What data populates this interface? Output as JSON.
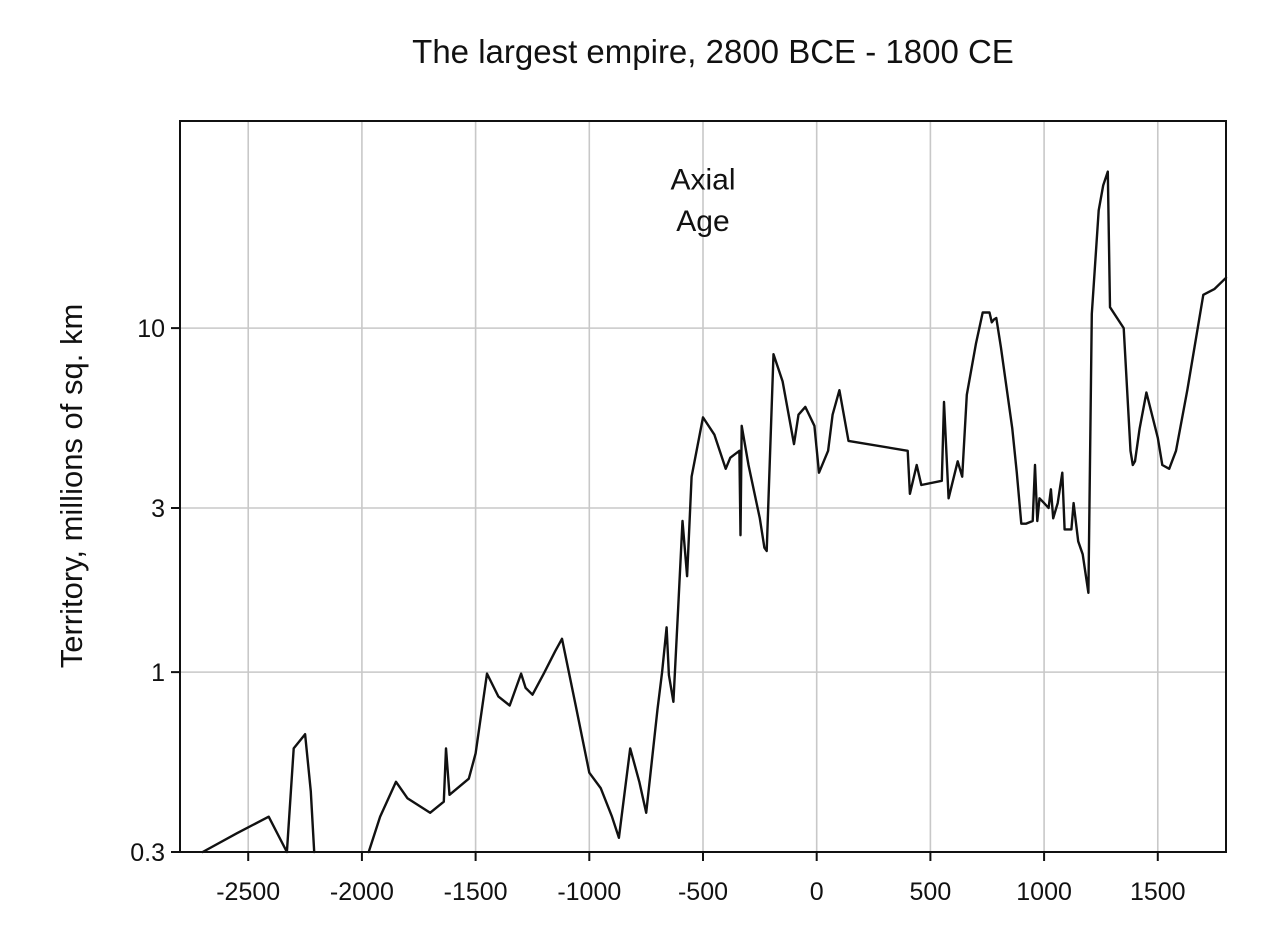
{
  "chart_data": {
    "type": "line",
    "title": "The largest empire, 2800 BCE - 1800 CE",
    "xlabel": "",
    "ylabel": "Territory, millions of sq. km",
    "xlim": [
      -2800,
      1800
    ],
    "ylim": [
      0.3,
      40
    ],
    "yscale": "log",
    "grid": true,
    "line_color": "#111111",
    "grid_color": "#c8c8c8",
    "x_ticks": [
      {
        "value": -2500,
        "label": "-2500"
      },
      {
        "value": -2000,
        "label": "-2000"
      },
      {
        "value": -1500,
        "label": "-1500"
      },
      {
        "value": -1000,
        "label": "-1000"
      },
      {
        "value": -500,
        "label": "-500"
      },
      {
        "value": 0,
        "label": "0"
      },
      {
        "value": 500,
        "label": "500"
      },
      {
        "value": 1000,
        "label": "1000"
      },
      {
        "value": 1500,
        "label": "1500"
      }
    ],
    "y_ticks": [
      {
        "value": 0.3,
        "label": "0.3"
      },
      {
        "value": 1,
        "label": "1"
      },
      {
        "value": 3,
        "label": "3"
      },
      {
        "value": 10,
        "label": "10"
      }
    ],
    "annotations": [
      {
        "text": "Axial",
        "x": -500,
        "y": 27
      },
      {
        "text": "Age",
        "x": -500,
        "y": 20.5
      }
    ],
    "series": [
      {
        "points": [
          [
            -2700,
            0.3
          ],
          [
            -2550,
            0.34
          ],
          [
            -2410,
            0.38
          ],
          [
            -2330,
            0.3
          ],
          [
            -2300,
            0.6
          ],
          [
            -2250,
            0.66
          ],
          [
            -2225,
            0.45
          ],
          [
            -2210,
            0.3
          ],
          null,
          [
            -1970,
            0.3
          ],
          [
            -1920,
            0.38
          ],
          [
            -1850,
            0.48
          ],
          [
            -1800,
            0.43
          ],
          [
            -1700,
            0.39
          ],
          [
            -1640,
            0.42
          ],
          [
            -1630,
            0.6
          ],
          [
            -1615,
            0.44
          ],
          [
            -1530,
            0.49
          ],
          [
            -1500,
            0.58
          ],
          [
            -1450,
            0.99
          ],
          [
            -1400,
            0.85
          ],
          [
            -1350,
            0.8
          ],
          [
            -1300,
            0.99
          ],
          [
            -1280,
            0.9
          ],
          [
            -1250,
            0.86
          ],
          [
            -1200,
            0.99
          ],
          [
            -1150,
            1.15
          ],
          [
            -1120,
            1.25
          ],
          [
            -1060,
            0.8
          ],
          [
            -1000,
            0.51
          ],
          [
            -950,
            0.46
          ],
          [
            -900,
            0.38
          ],
          [
            -870,
            0.33
          ],
          [
            -820,
            0.6
          ],
          [
            -780,
            0.48
          ],
          [
            -750,
            0.39
          ],
          [
            -700,
            0.78
          ],
          [
            -680,
            1.0
          ],
          [
            -660,
            1.35
          ],
          [
            -650,
            0.98
          ],
          [
            -630,
            0.82
          ],
          [
            -610,
            1.5
          ],
          [
            -590,
            2.75
          ],
          [
            -570,
            1.9
          ],
          [
            -550,
            3.7
          ],
          [
            -500,
            5.5
          ],
          [
            -450,
            4.9
          ],
          [
            -400,
            3.9
          ],
          [
            -380,
            4.2
          ],
          [
            -340,
            4.4
          ],
          [
            -335,
            2.5
          ],
          [
            -330,
            5.2
          ],
          [
            -300,
            4.0
          ],
          [
            -250,
            2.8
          ],
          [
            -230,
            2.3
          ],
          [
            -220,
            2.25
          ],
          [
            -190,
            8.4
          ],
          [
            -150,
            7.0
          ],
          [
            -100,
            4.6
          ],
          [
            -80,
            5.6
          ],
          [
            -50,
            5.9
          ],
          [
            -10,
            5.2
          ],
          [
            10,
            3.8
          ],
          [
            50,
            4.4
          ],
          [
            70,
            5.6
          ],
          [
            100,
            6.6
          ],
          [
            140,
            4.7
          ],
          [
            400,
            4.4
          ],
          [
            410,
            3.3
          ],
          [
            440,
            4.0
          ],
          [
            460,
            3.5
          ],
          [
            550,
            3.6
          ],
          [
            560,
            6.1
          ],
          [
            580,
            3.2
          ],
          [
            620,
            4.1
          ],
          [
            640,
            3.7
          ],
          [
            660,
            6.4
          ],
          [
            700,
            9.0
          ],
          [
            730,
            11.1
          ],
          [
            760,
            11.1
          ],
          [
            770,
            10.4
          ],
          [
            780,
            10.6
          ],
          [
            790,
            10.7
          ],
          [
            810,
            8.8
          ],
          [
            860,
            5.1
          ],
          [
            880,
            3.8
          ],
          [
            900,
            2.7
          ],
          [
            920,
            2.7
          ],
          [
            950,
            2.75
          ],
          [
            960,
            4.0
          ],
          [
            970,
            2.75
          ],
          [
            980,
            3.2
          ],
          [
            1000,
            3.1
          ],
          [
            1020,
            3.0
          ],
          [
            1030,
            3.4
          ],
          [
            1040,
            2.8
          ],
          [
            1060,
            3.1
          ],
          [
            1080,
            3.8
          ],
          [
            1090,
            2.6
          ],
          [
            1120,
            2.6
          ],
          [
            1130,
            3.1
          ],
          [
            1150,
            2.4
          ],
          [
            1170,
            2.2
          ],
          [
            1195,
            1.7
          ],
          [
            1210,
            11.0
          ],
          [
            1240,
            22.0
          ],
          [
            1260,
            26.0
          ],
          [
            1280,
            28.5
          ],
          [
            1290,
            11.5
          ],
          [
            1350,
            10.0
          ],
          [
            1380,
            4.4
          ],
          [
            1390,
            4.0
          ],
          [
            1400,
            4.1
          ],
          [
            1420,
            5.1
          ],
          [
            1450,
            6.5
          ],
          [
            1500,
            4.8
          ],
          [
            1520,
            4.0
          ],
          [
            1550,
            3.9
          ],
          [
            1580,
            4.4
          ],
          [
            1630,
            6.6
          ],
          [
            1700,
            12.5
          ],
          [
            1750,
            13.0
          ],
          [
            1800,
            14.0
          ]
        ]
      }
    ]
  }
}
